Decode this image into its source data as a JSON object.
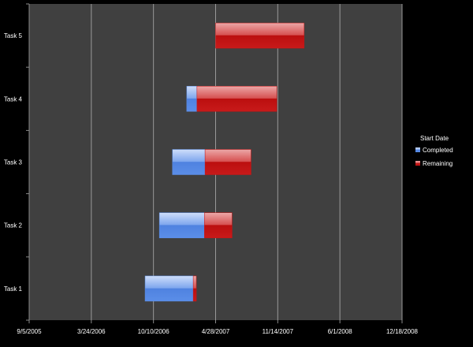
{
  "chart_data": {
    "type": "bar",
    "orientation": "horizontal",
    "stacking": "stacked",
    "categories": [
      "Task 1",
      "Task 2",
      "Task 3",
      "Task 4",
      "Task 5"
    ],
    "hidden_base_series": {
      "name": "Start Date",
      "values": [
        "2006-09-13",
        "2006-10-29",
        "2006-12-10",
        "2007-01-25",
        "2007-04-28"
      ]
    },
    "series": [
      {
        "name": "Completed",
        "color": "#5b8ee8",
        "values_days": [
          155,
          145,
          105,
          33,
          0
        ],
        "end_dates": [
          "2007-02-15",
          "2007-03-23",
          "2007-03-25",
          "2007-02-27",
          "2007-04-28"
        ]
      },
      {
        "name": "Remaining",
        "color": "#c81414",
        "values_days": [
          10,
          89,
          148,
          257,
          285
        ],
        "end_dates": [
          "2007-02-25",
          "2007-06-20",
          "2007-08-20",
          "2007-11-11",
          "2008-02-07"
        ]
      }
    ],
    "xaxis": {
      "type": "date",
      "min": "2005-09-05",
      "max": "2008-12-18",
      "tick_labels": [
        "9/5/2005",
        "3/24/2006",
        "10/10/2006",
        "4/28/2007",
        "11/14/2007",
        "6/1/2008",
        "12/18/2008"
      ]
    },
    "legend": {
      "title": "Start Date",
      "entries": [
        "Completed",
        "Remaining"
      ],
      "position": "right"
    },
    "grid": {
      "vertical": true,
      "horizontal": false
    },
    "colors": {
      "page_background": "#000000",
      "plot_background": "#404040",
      "gridline": "#9a9a9a",
      "text": "#ffffff"
    }
  }
}
